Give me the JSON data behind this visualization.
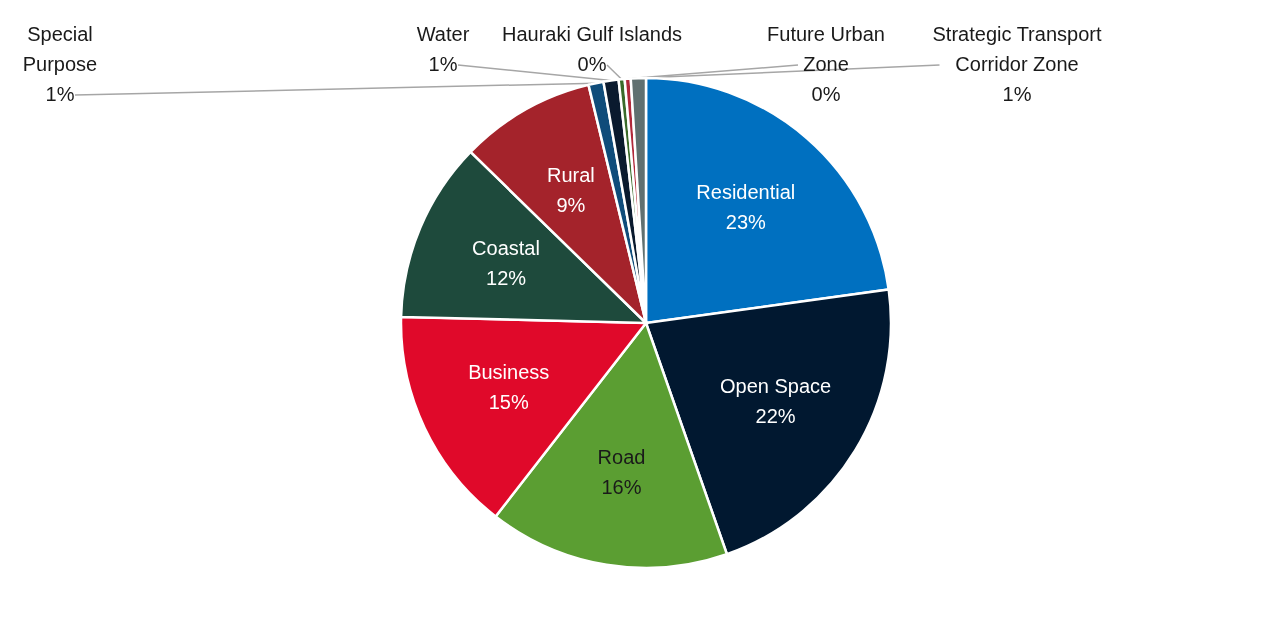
{
  "chart_data": {
    "type": "pie",
    "categories": [
      "Residential",
      "Open Space",
      "Road",
      "Business",
      "Coastal",
      "Rural",
      "Special Purpose",
      "Water",
      "Hauraki Gulf Islands",
      "Future Urban Zone",
      "Strategic Transport Corridor Zone"
    ],
    "values": [
      23,
      22,
      16,
      15,
      12,
      9,
      1,
      1,
      0.4,
      0.4,
      1
    ],
    "value_labels": [
      "23%",
      "22%",
      "16%",
      "15%",
      "12%",
      "9%",
      "1%",
      "1%",
      "0%",
      "0%",
      "1%"
    ],
    "colors": [
      "#0070c0",
      "#011830",
      "#5b9e32",
      "#e0092a",
      "#1e4a3c",
      "#a4232b",
      "#0f4c7a",
      "#0a1a2e",
      "#3a6a2a",
      "#b0283a",
      "#607070"
    ]
  }
}
